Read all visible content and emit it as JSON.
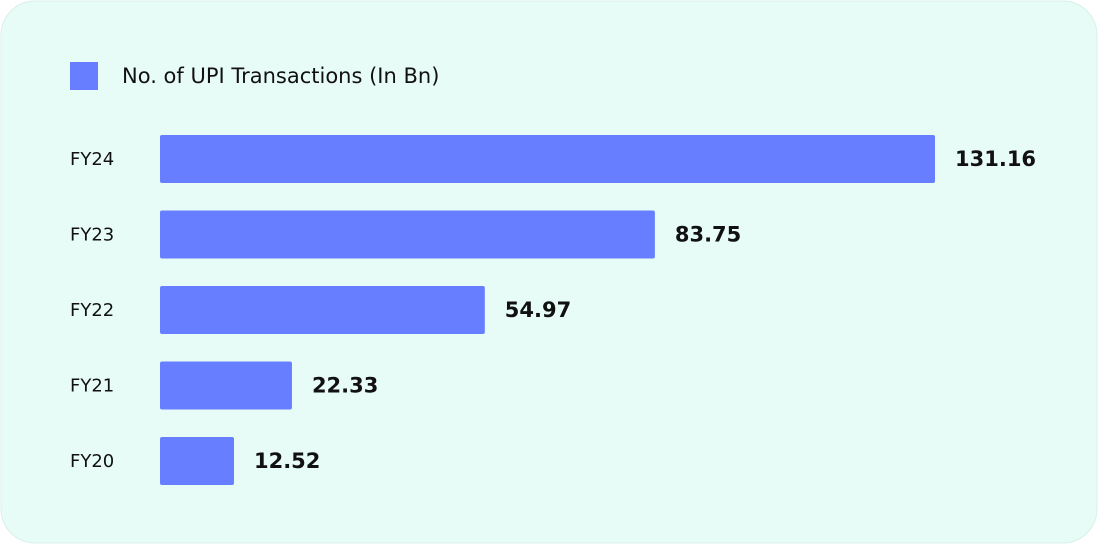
{
  "chart_data": {
    "type": "bar",
    "orientation": "horizontal",
    "categories": [
      "FY24",
      "FY23",
      "FY22",
      "FY21",
      "FY20"
    ],
    "series": [
      {
        "name": "No. of UPI Transactions (In Bn)",
        "color": "#667eff",
        "values": [
          131.16,
          83.75,
          54.97,
          22.33,
          12.52
        ]
      }
    ]
  }
}
